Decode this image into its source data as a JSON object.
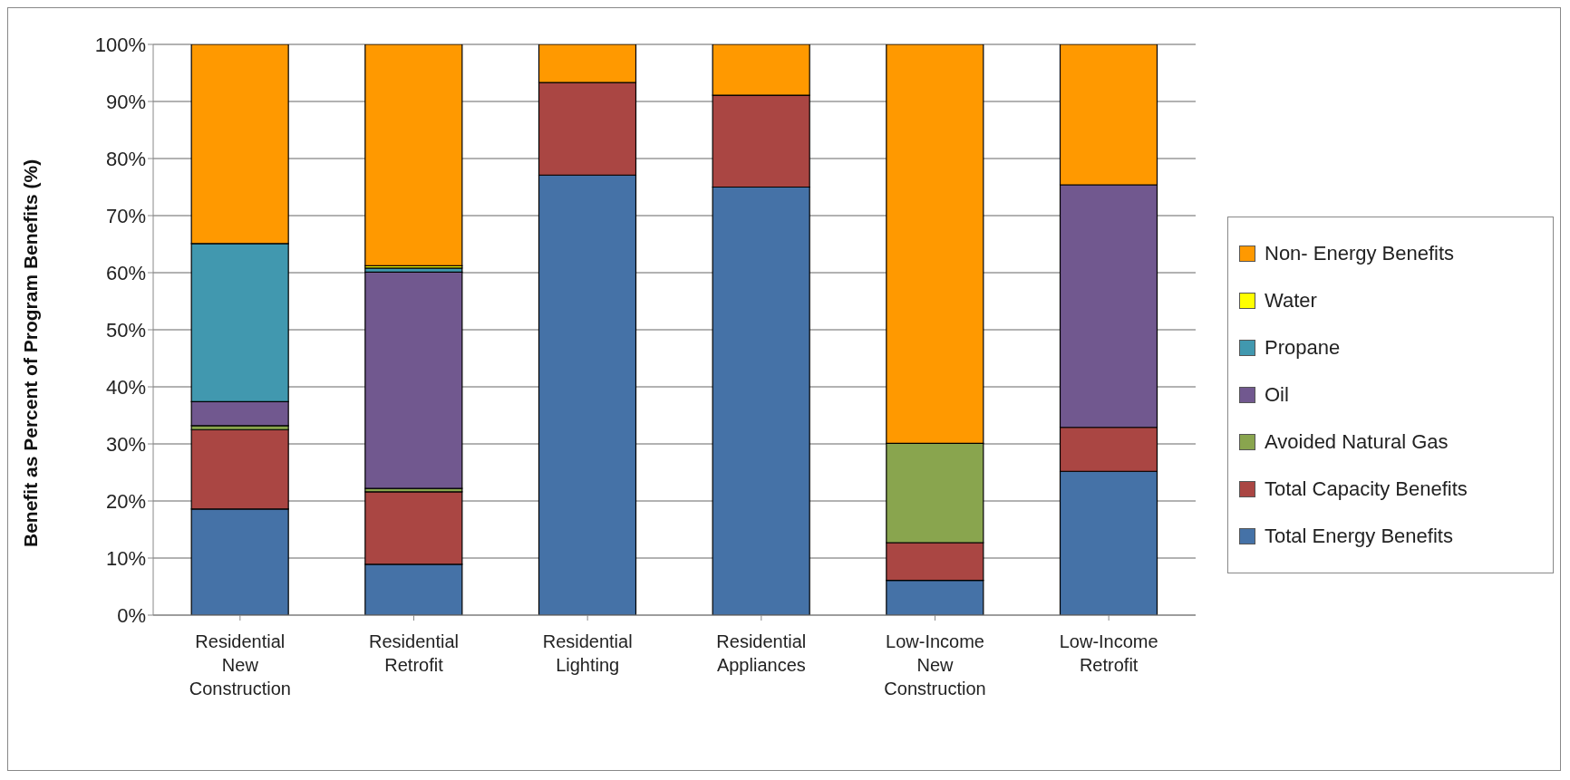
{
  "chart_data": {
    "type": "bar",
    "stacked": true,
    "ylabel": "Benefit as Percent of Program Benefits (%)",
    "categories": [
      "Residential New Construction",
      "Residential Retrofit",
      "Residential Lighting",
      "Residential Appliances",
      "Low-Income New Construction",
      "Low-Income Retrofit"
    ],
    "series": [
      {
        "name": "Total Energy Benefits",
        "color": "#4572a7",
        "values": [
          18.6,
          8.9,
          77.1,
          75.0,
          6.1,
          25.2
        ]
      },
      {
        "name": "Total Capacity Benefits",
        "color": "#aa4643",
        "values": [
          13.9,
          12.7,
          16.2,
          16.1,
          6.6,
          7.7
        ]
      },
      {
        "name": "Avoided Natural Gas",
        "color": "#89a54e",
        "values": [
          0.7,
          0.6,
          0,
          0,
          17.4,
          0
        ]
      },
      {
        "name": "Oil",
        "color": "#71588f",
        "values": [
          4.2,
          37.9,
          0,
          0,
          0,
          42.5
        ]
      },
      {
        "name": "Propane",
        "color": "#4198af",
        "values": [
          27.7,
          0.7,
          0,
          0,
          0,
          0
        ]
      },
      {
        "name": "Water",
        "color": "#ffff00",
        "values": [
          0,
          0.4,
          0,
          0,
          0,
          0
        ]
      },
      {
        "name": "Non- Energy Benefits",
        "color": "#ff9900",
        "values": [
          34.9,
          38.8,
          6.7,
          8.9,
          69.9,
          24.6
        ]
      }
    ],
    "ylim": [
      0,
      100
    ],
    "yticks": [
      {
        "value": 0,
        "label": "0%"
      },
      {
        "value": 10,
        "label": "10%"
      },
      {
        "value": 20,
        "label": "20%"
      },
      {
        "value": 30,
        "label": "30%"
      },
      {
        "value": 40,
        "label": "40%"
      },
      {
        "value": 50,
        "label": "50%"
      },
      {
        "value": 60,
        "label": "60%"
      },
      {
        "value": 70,
        "label": "70%"
      },
      {
        "value": 80,
        "label": "80%"
      },
      {
        "value": 90,
        "label": "90%"
      },
      {
        "value": 100,
        "label": "100%"
      }
    ],
    "grid": "y",
    "legend": "right"
  }
}
